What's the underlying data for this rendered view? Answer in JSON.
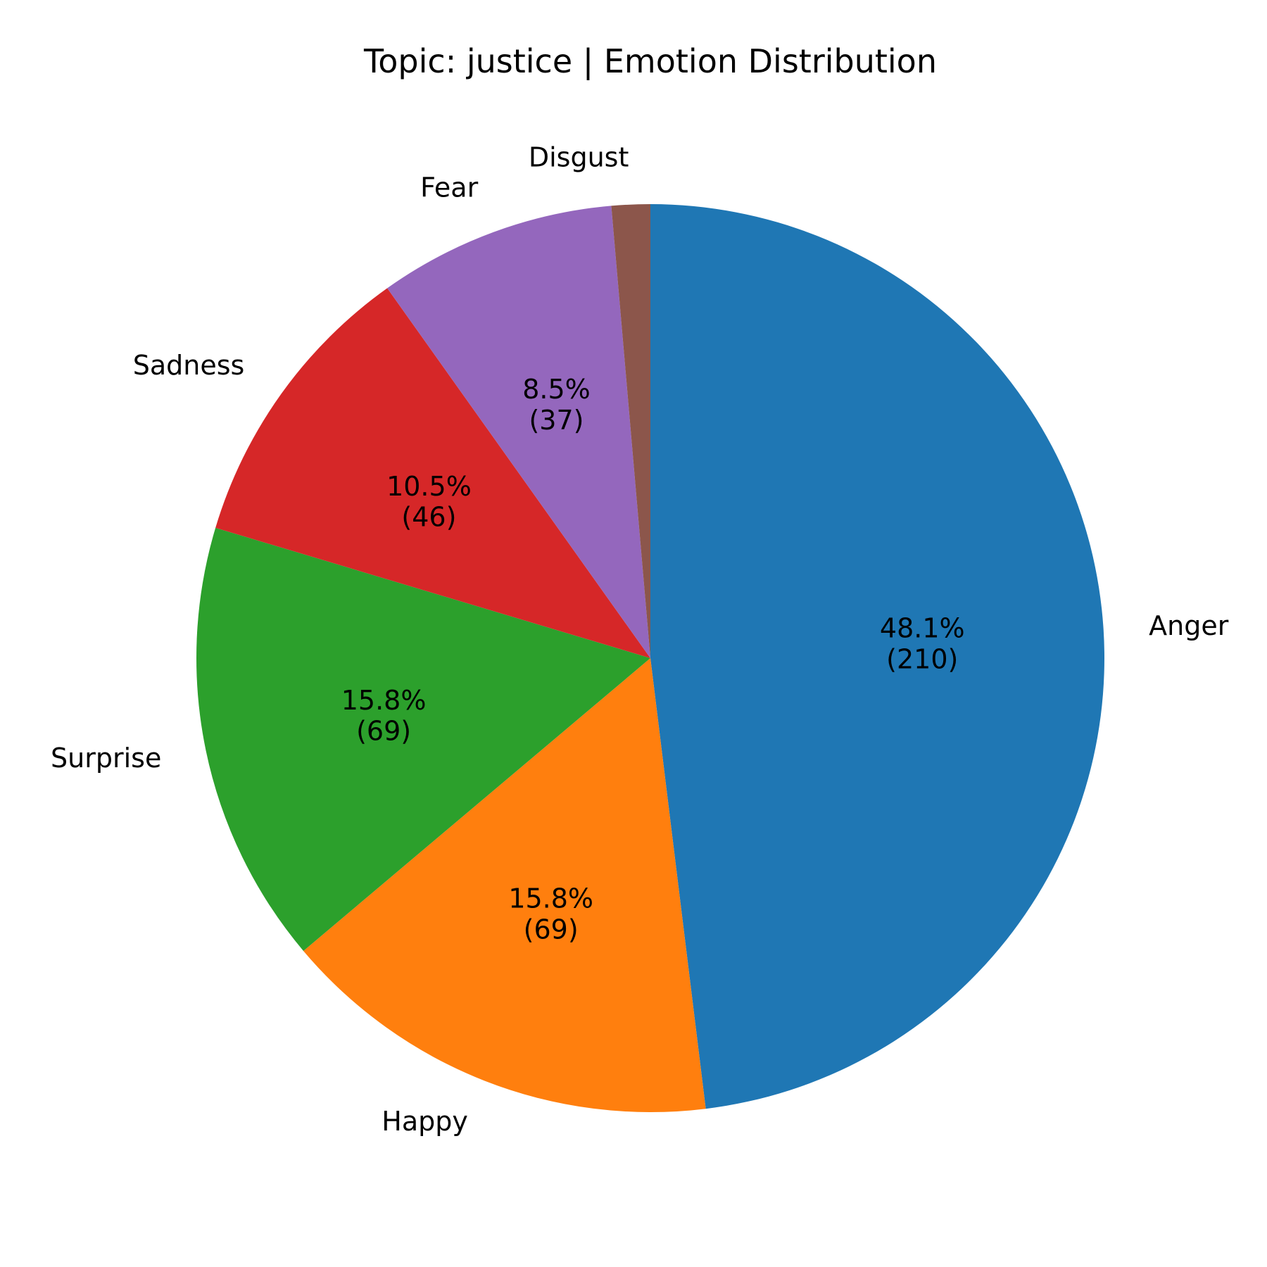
{
  "chart_data": {
    "type": "pie",
    "title": "Topic: justice | Emotion Distribution",
    "start_angle_deg": 90,
    "direction": "clockwise",
    "slices": [
      {
        "label": "Anger",
        "value": 210,
        "percent_text": "48.1%",
        "count_text": "(210)",
        "color": "#1f77b4"
      },
      {
        "label": "Happy",
        "value": 69,
        "percent_text": "15.8%",
        "count_text": "(69)",
        "color": "#ff7f0e"
      },
      {
        "label": "Surprise",
        "value": 69,
        "percent_text": "15.8%",
        "count_text": "(69)",
        "color": "#2ca02c"
      },
      {
        "label": "Sadness",
        "value": 46,
        "percent_text": "10.5%",
        "count_text": "(46)",
        "color": "#d62728"
      },
      {
        "label": "Fear",
        "value": 37,
        "percent_text": "8.5%",
        "count_text": "(37)",
        "color": "#9467bd"
      },
      {
        "label": "Disgust",
        "value": 6,
        "percent_text": "",
        "count_text": "",
        "color": "#8c564b"
      }
    ]
  }
}
